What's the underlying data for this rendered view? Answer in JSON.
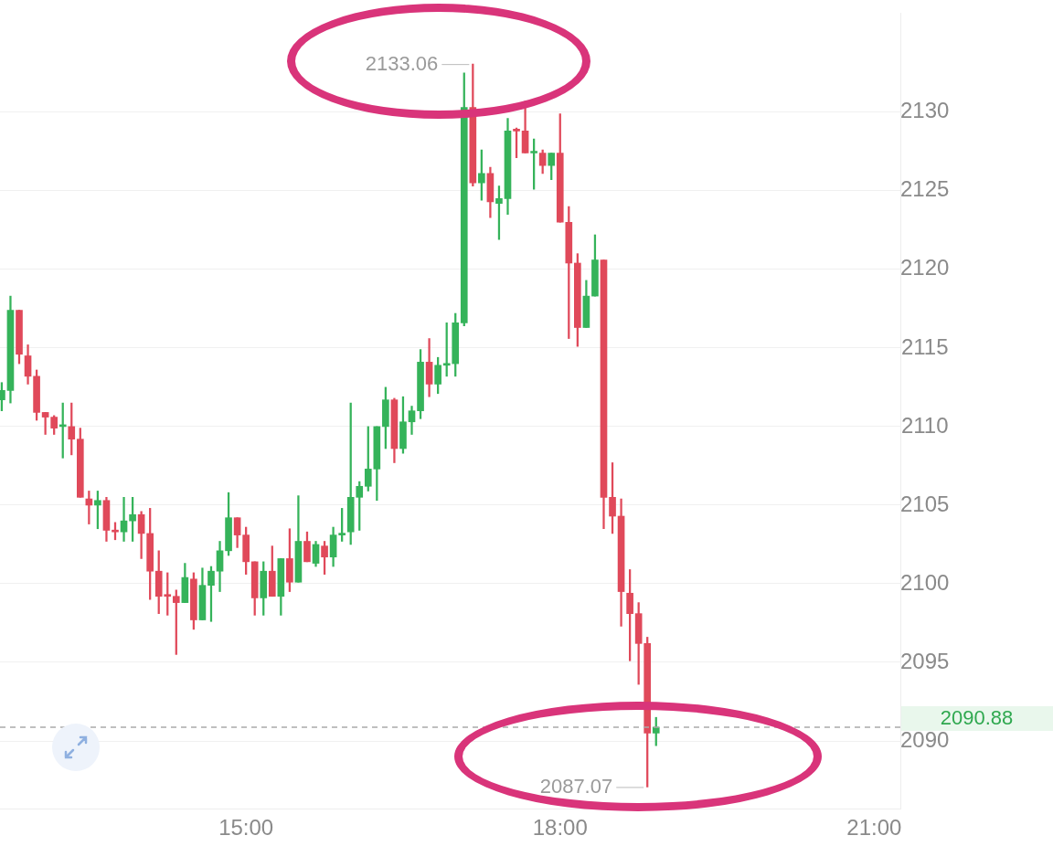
{
  "chart_data": {
    "type": "candlestick",
    "x": [
      12.6667,
      12.75,
      12.8333,
      12.9167,
      13,
      13.0833,
      13.1667,
      13.25,
      13.3333,
      13.4167,
      13.5,
      13.5833,
      13.6667,
      13.75,
      13.8333,
      13.9167,
      14,
      14.0833,
      14.1667,
      14.25,
      14.3333,
      14.4167,
      14.5,
      14.5833,
      14.6667,
      14.75,
      14.8333,
      14.9167,
      15,
      15.0833,
      15.1667,
      15.25,
      15.3333,
      15.4167,
      15.5,
      15.5833,
      15.6667,
      15.75,
      15.8333,
      15.9167,
      16,
      16.0833,
      16.1667,
      16.25,
      16.3333,
      16.4167,
      16.5,
      16.5833,
      16.6667,
      16.75,
      16.8333,
      16.9167,
      17,
      17.0833,
      17.1667,
      17.25,
      17.3333,
      17.4167,
      17.5,
      17.5833,
      17.6667,
      17.75,
      17.8333,
      17.9167,
      18,
      18.0833,
      18.1667,
      18.25,
      18.3333,
      18.4167,
      18.5,
      18.5833,
      18.6667,
      18.75,
      18.8333,
      18.9167
    ],
    "ohlc": [
      [
        2111.7,
        2112.8,
        2111.0,
        2112.3
      ],
      [
        2112.3,
        2118.3,
        2111.5,
        2117.4
      ],
      [
        2117.4,
        2117.4,
        2114.0,
        2114.6
      ],
      [
        2114.5,
        2115.2,
        2112.7,
        2113.2
      ],
      [
        2113.2,
        2113.6,
        2110.4,
        2110.9
      ],
      [
        2110.9,
        2110.9,
        2109.5,
        2110.6
      ],
      [
        2110.6,
        2110.7,
        2109.5,
        2109.9
      ],
      [
        2110.0,
        2111.5,
        2108.0,
        2110.1
      ],
      [
        2110.0,
        2111.5,
        2108.2,
        2109.2
      ],
      [
        2109.2,
        2109.9,
        2105.5,
        2105.5
      ],
      [
        2105.4,
        2105.9,
        2103.8,
        2105.0
      ],
      [
        2105.0,
        2105.9,
        2103.5,
        2105.3
      ],
      [
        2105.3,
        2105.5,
        2102.7,
        2103.4
      ],
      [
        2103.4,
        2103.9,
        2102.8,
        2103.3
      ],
      [
        2103.3,
        2105.5,
        2102.7,
        2104.0
      ],
      [
        2104.0,
        2105.5,
        2102.7,
        2104.4
      ],
      [
        2104.4,
        2104.6,
        2101.6,
        2103.2
      ],
      [
        2103.2,
        2104.8,
        2099.0,
        2100.8
      ],
      [
        2100.8,
        2102.1,
        2098.1,
        2099.2
      ],
      [
        2099.3,
        2100.7,
        2098.0,
        2099.2
      ],
      [
        2099.2,
        2099.6,
        2095.5,
        2098.8
      ],
      [
        2098.8,
        2101.3,
        2098.8,
        2100.4
      ],
      [
        2100.3,
        2100.7,
        2097.1,
        2097.7
      ],
      [
        2097.7,
        2101.0,
        2097.7,
        2099.9
      ],
      [
        2099.9,
        2101.1,
        2097.6,
        2100.8
      ],
      [
        2100.8,
        2102.7,
        2099.5,
        2102.1
      ],
      [
        2102.1,
        2105.8,
        2101.8,
        2104.2
      ],
      [
        2104.2,
        2104.2,
        2102.3,
        2103.1
      ],
      [
        2103.1,
        2103.6,
        2100.6,
        2101.4
      ],
      [
        2101.4,
        2101.4,
        2098.0,
        2099.1
      ],
      [
        2099.1,
        2101.4,
        2098.0,
        2100.8
      ],
      [
        2100.8,
        2102.4,
        2099.2,
        2099.2
      ],
      [
        2099.2,
        2101.6,
        2098.0,
        2101.6
      ],
      [
        2101.6,
        2103.5,
        2099.5,
        2100.1
      ],
      [
        2100.1,
        2105.6,
        2100.1,
        2102.7
      ],
      [
        2102.7,
        2103.3,
        2101.4,
        2101.4
      ],
      [
        2101.3,
        2102.7,
        2101.1,
        2102.5
      ],
      [
        2102.4,
        2102.7,
        2100.6,
        2101.7
      ],
      [
        2101.7,
        2103.6,
        2101.1,
        2103.1
      ],
      [
        2103.1,
        2104.8,
        2102.7,
        2103.2
      ],
      [
        2103.3,
        2111.5,
        2102.5,
        2105.5
      ],
      [
        2105.5,
        2106.5,
        2103.4,
        2106.2
      ],
      [
        2106.2,
        2110.0,
        2105.9,
        2107.3
      ],
      [
        2107.3,
        2110.0,
        2105.3,
        2110.0
      ],
      [
        2110.0,
        2112.5,
        2108.6,
        2111.7
      ],
      [
        2111.7,
        2111.8,
        2107.7,
        2108.6
      ],
      [
        2108.6,
        2111.9,
        2108.3,
        2110.3
      ],
      [
        2110.3,
        2111.3,
        2109.5,
        2111.0
      ],
      [
        2111.0,
        2114.9,
        2110.5,
        2114.1
      ],
      [
        2114.1,
        2115.6,
        2111.9,
        2112.7
      ],
      [
        2112.7,
        2114.4,
        2112.1,
        2113.9
      ],
      [
        2113.9,
        2116.6,
        2113.2,
        2114.0
      ],
      [
        2114.0,
        2117.2,
        2113.2,
        2116.6
      ],
      [
        2116.6,
        2132.5,
        2116.4,
        2130.3
      ],
      [
        2130.3,
        2133.06,
        2125.3,
        2125.5
      ],
      [
        2125.5,
        2127.6,
        2124.4,
        2126.1
      ],
      [
        2126.1,
        2126.5,
        2123.3,
        2124.3
      ],
      [
        2124.2,
        2125.3,
        2121.9,
        2124.5
      ],
      [
        2124.5,
        2129.6,
        2123.5,
        2128.8
      ],
      [
        2128.9,
        2129.0,
        2127.1,
        2128.8
      ],
      [
        2128.8,
        2130.7,
        2127.4,
        2127.4
      ],
      [
        2127.4,
        2128.3,
        2125.1,
        2127.5
      ],
      [
        2127.4,
        2127.6,
        2126.1,
        2126.6
      ],
      [
        2126.6,
        2127.4,
        2125.7,
        2127.4
      ],
      [
        2127.4,
        2129.9,
        2123.0,
        2123.0
      ],
      [
        2123.0,
        2124.0,
        2115.6,
        2120.4
      ],
      [
        2120.4,
        2121.0,
        2115.1,
        2116.3
      ],
      [
        2116.3,
        2119.3,
        2116.3,
        2118.3
      ],
      [
        2118.3,
        2122.2,
        2118.3,
        2120.6
      ],
      [
        2120.6,
        2120.6,
        2103.5,
        2105.5
      ],
      [
        2105.5,
        2107.7,
        2103.2,
        2104.3
      ],
      [
        2104.3,
        2105.4,
        2097.3,
        2099.5
      ],
      [
        2099.4,
        2100.9,
        2095.1,
        2098.1
      ],
      [
        2098.1,
        2098.8,
        2093.6,
        2096.2
      ],
      [
        2096.2,
        2096.6,
        2087.07,
        2090.5
      ],
      [
        2090.5,
        2091.5,
        2089.7,
        2090.88
      ]
    ],
    "colors": [
      "#35b35a",
      "#35b35a",
      "#e0495a",
      "#e0495a",
      "#e0495a",
      "#e0495a",
      "#e0495a",
      "#35b35a",
      "#e0495a",
      "#e0495a",
      "#e0495a",
      "#35b35a",
      "#e0495a",
      "#e0495a",
      "#35b35a",
      "#35b35a",
      "#e0495a",
      "#e0495a",
      "#e0495a",
      "#e0495a",
      "#e0495a",
      "#35b35a",
      "#e0495a",
      "#35b35a",
      "#35b35a",
      "#35b35a",
      "#35b35a",
      "#e0495a",
      "#e0495a",
      "#e0495a",
      "#35b35a",
      "#e0495a",
      "#35b35a",
      "#e0495a",
      "#35b35a",
      "#e0495a",
      "#35b35a",
      "#e0495a",
      "#35b35a",
      "#35b35a",
      "#35b35a",
      "#35b35a",
      "#35b35a",
      "#35b35a",
      "#35b35a",
      "#e0495a",
      "#35b35a",
      "#35b35a",
      "#35b35a",
      "#e0495a",
      "#35b35a",
      "#35b35a",
      "#35b35a",
      "#35b35a",
      "#e0495a",
      "#35b35a",
      "#e0495a",
      "#35b35a",
      "#35b35a",
      "#e0495a",
      "#e0495a",
      "#35b35a",
      "#e0495a",
      "#35b35a",
      "#e0495a",
      "#e0495a",
      "#e0495a",
      "#35b35a",
      "#35b35a",
      "#e0495a",
      "#e0495a",
      "#e0495a",
      "#e0495a",
      "#e0495a",
      "#e0495a",
      "#35b35a"
    ],
    "xlim": [
      12.65,
      21.25
    ],
    "xticks": [
      {
        "value": 15,
        "label": "15:00"
      },
      {
        "value": 18,
        "label": "18:00"
      },
      {
        "value": 21,
        "label": "21:00"
      }
    ],
    "ylim": [
      2085.7,
      2136.3
    ],
    "yticks": [
      2090,
      2095,
      2100,
      2105,
      2110,
      2115,
      2120,
      2125,
      2130
    ],
    "grid": "y",
    "legend": false,
    "ref_lines": [
      {
        "axis": "y",
        "value": 2090.88,
        "label": "2090.88",
        "color": "#aaaaaa",
        "line_style": "dashed"
      }
    ],
    "annotations": [
      {
        "text": "2133.06",
        "x": 17.1667,
        "y": 2133.06
      },
      {
        "text": "2087.07",
        "x": 18.8333,
        "y": 2087.07
      }
    ]
  }
}
